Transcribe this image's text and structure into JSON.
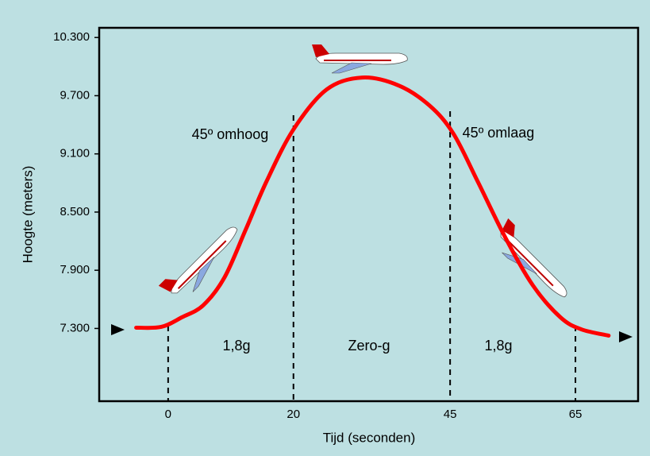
{
  "chart_data": {
    "type": "line",
    "y_label": "Hoogte (meters)",
    "x_label": "Tijd (seconden)",
    "xlim": [
      -11,
      75
    ],
    "xticks": [
      0,
      20,
      45,
      65
    ],
    "ylim": [
      6550,
      10400
    ],
    "yticks": [
      {
        "value": 7300,
        "label": "7.300"
      },
      {
        "value": 7900,
        "label": "7.900"
      },
      {
        "value": 8500,
        "label": "8.500"
      },
      {
        "value": 9100,
        "label": "9.100"
      },
      {
        "value": 9700,
        "label": "9.700"
      },
      {
        "value": 10300,
        "label": "10.300"
      }
    ],
    "series": [
      {
        "color": "#ff0000",
        "x": [
          -5.1,
          -1.1,
          2.2,
          5.6,
          9.0,
          12.4,
          15.7,
          20,
          25.3,
          31.0,
          36.8,
          41.7,
          45.5,
          49.4,
          53.8,
          58.2,
          62.6,
          65.9,
          70.3
        ],
        "values": [
          7308,
          7316,
          7415,
          7539,
          7827,
          8322,
          8816,
          9352,
          9764,
          9887,
          9805,
          9599,
          9311,
          8816,
          8239,
          7745,
          7415,
          7292,
          7226
        ]
      }
    ],
    "annotations": [
      "45º omhoog",
      "45º omlaag",
      "1,8g",
      "Zero-g",
      "1,8g"
    ]
  }
}
